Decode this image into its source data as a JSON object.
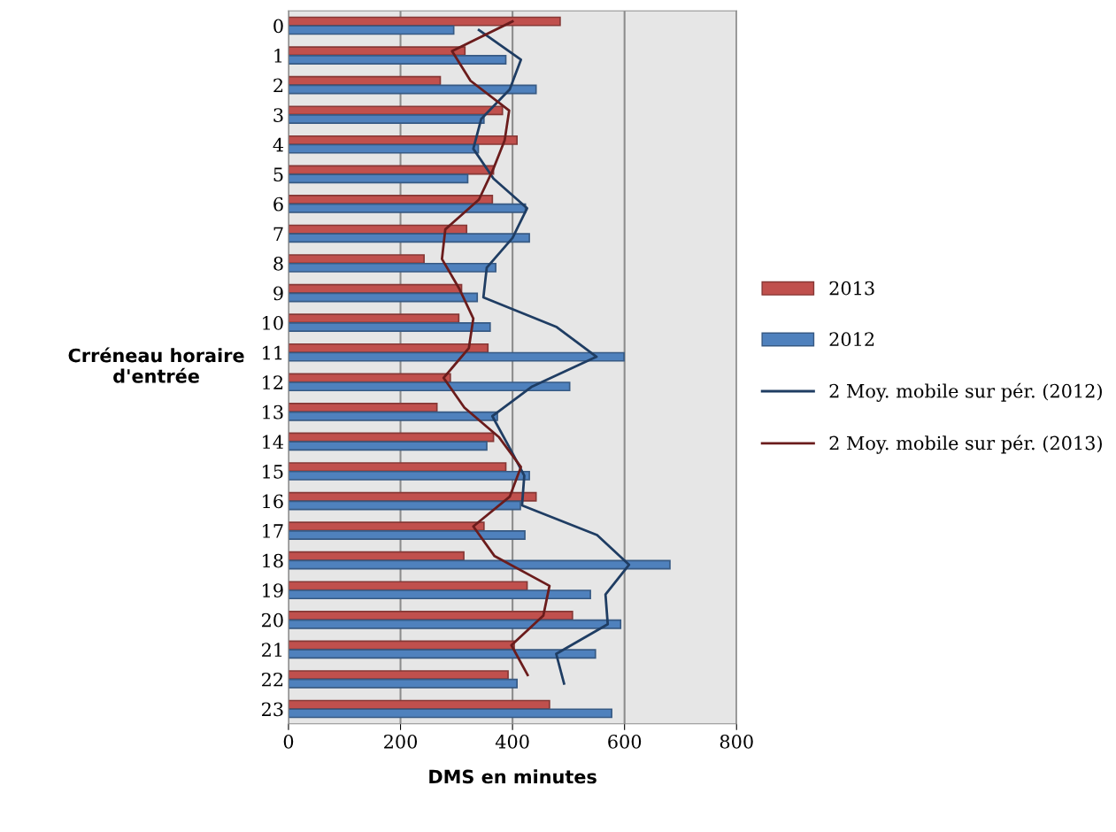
{
  "chart_data": {
    "type": "bar",
    "orientation": "horizontal",
    "xlabel": "DMS en minutes",
    "ylabel": "Crréneau horaire d'entrée",
    "categories": [
      "0",
      "1",
      "2",
      "3",
      "4",
      "5",
      "6",
      "7",
      "8",
      "9",
      "10",
      "11",
      "12",
      "13",
      "14",
      "15",
      "16",
      "17",
      "18",
      "19",
      "20",
      "21",
      "22",
      "23"
    ],
    "series": [
      {
        "name": "2013",
        "color": "#c0504d",
        "values": [
          485,
          315,
          271,
          382,
          408,
          366,
          364,
          318,
          242,
          309,
          304,
          356,
          289,
          265,
          366,
          388,
          442,
          349,
          313,
          426,
          507,
          403,
          392,
          466
        ]
      },
      {
        "name": "2012",
        "color": "#4f81bd",
        "values": [
          295,
          388,
          442,
          349,
          339,
          320,
          423,
          430,
          370,
          337,
          360,
          599,
          502,
          373,
          354,
          430,
          414,
          422,
          681,
          539,
          593,
          548,
          408,
          577
        ]
      },
      {
        "name": "2 Moy. mobile sur pér. (2012)",
        "type": "line",
        "color": "#1f3d63",
        "values": [
          340,
          415,
          395,
          344,
          330,
          366,
          426,
          400,
          354,
          348,
          479,
          550,
          435,
          364,
          393,
          421,
          417,
          551,
          608,
          566,
          570,
          478,
          492,
          null
        ]
      },
      {
        "name": "2 Moy. mobile sur pér. (2013)",
        "type": "line",
        "color": "#6b1c1c",
        "values": [
          400,
          292,
          325,
          394,
          386,
          365,
          340,
          280,
          274,
          305,
          330,
          322,
          277,
          314,
          376,
          415,
          395,
          330,
          368,
          466,
          455,
          398,
          427,
          null
        ]
      }
    ],
    "xlim": [
      0,
      800
    ],
    "xticks": [
      0,
      200,
      400,
      600,
      800
    ],
    "grid": "x",
    "legend": "right",
    "marker": "none",
    "line_style": "solid"
  }
}
